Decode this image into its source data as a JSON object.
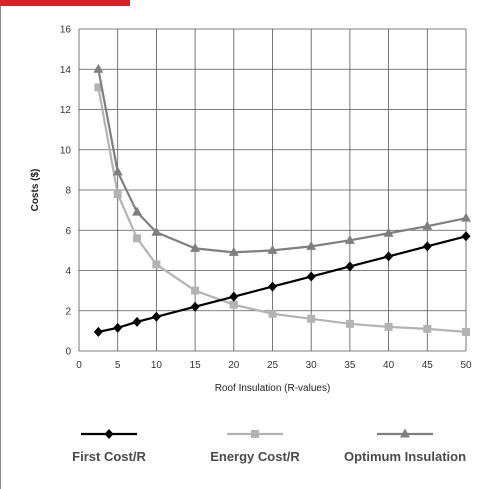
{
  "colors": {
    "accent_tab": "#d62228",
    "grid": "#555555",
    "first_cost": "#000000",
    "energy_cost": "#b3b3b3",
    "optimum": "#7f7f7f"
  },
  "chart_data": {
    "type": "line",
    "title": "",
    "xlabel": "Roof Insulation (R-values)",
    "ylabel": "Costs ($)",
    "xlim": [
      0,
      50
    ],
    "ylim": [
      0,
      16
    ],
    "xticks": [
      0,
      5,
      10,
      15,
      20,
      25,
      30,
      35,
      40,
      45,
      50
    ],
    "yticks": [
      0,
      2,
      4,
      6,
      8,
      10,
      12,
      14,
      16
    ],
    "grid": true,
    "legend_position": "bottom",
    "series": [
      {
        "name": "First Cost/R",
        "marker": "diamond",
        "color": "#000000",
        "x": [
          2.5,
          5,
          7.5,
          10,
          15,
          20,
          25,
          30,
          35,
          40,
          45,
          50
        ],
        "y": [
          0.95,
          1.15,
          1.45,
          1.7,
          2.2,
          2.7,
          3.2,
          3.7,
          4.2,
          4.7,
          5.2,
          5.7
        ]
      },
      {
        "name": "Energy Cost/R",
        "marker": "square",
        "color": "#b3b3b3",
        "x": [
          2.5,
          5,
          7.5,
          10,
          15,
          20,
          25,
          30,
          35,
          40,
          45,
          50
        ],
        "y": [
          13.1,
          7.8,
          5.6,
          4.3,
          3.0,
          2.3,
          1.85,
          1.6,
          1.35,
          1.2,
          1.1,
          0.95
        ]
      },
      {
        "name": "Optimum Insulation",
        "marker": "triangle",
        "color": "#7f7f7f",
        "x": [
          2.5,
          5,
          7.5,
          10,
          15,
          20,
          25,
          30,
          35,
          40,
          45,
          50
        ],
        "y": [
          14.0,
          8.9,
          6.9,
          5.9,
          5.1,
          4.9,
          5.0,
          5.2,
          5.5,
          5.85,
          6.2,
          6.6
        ]
      }
    ]
  }
}
